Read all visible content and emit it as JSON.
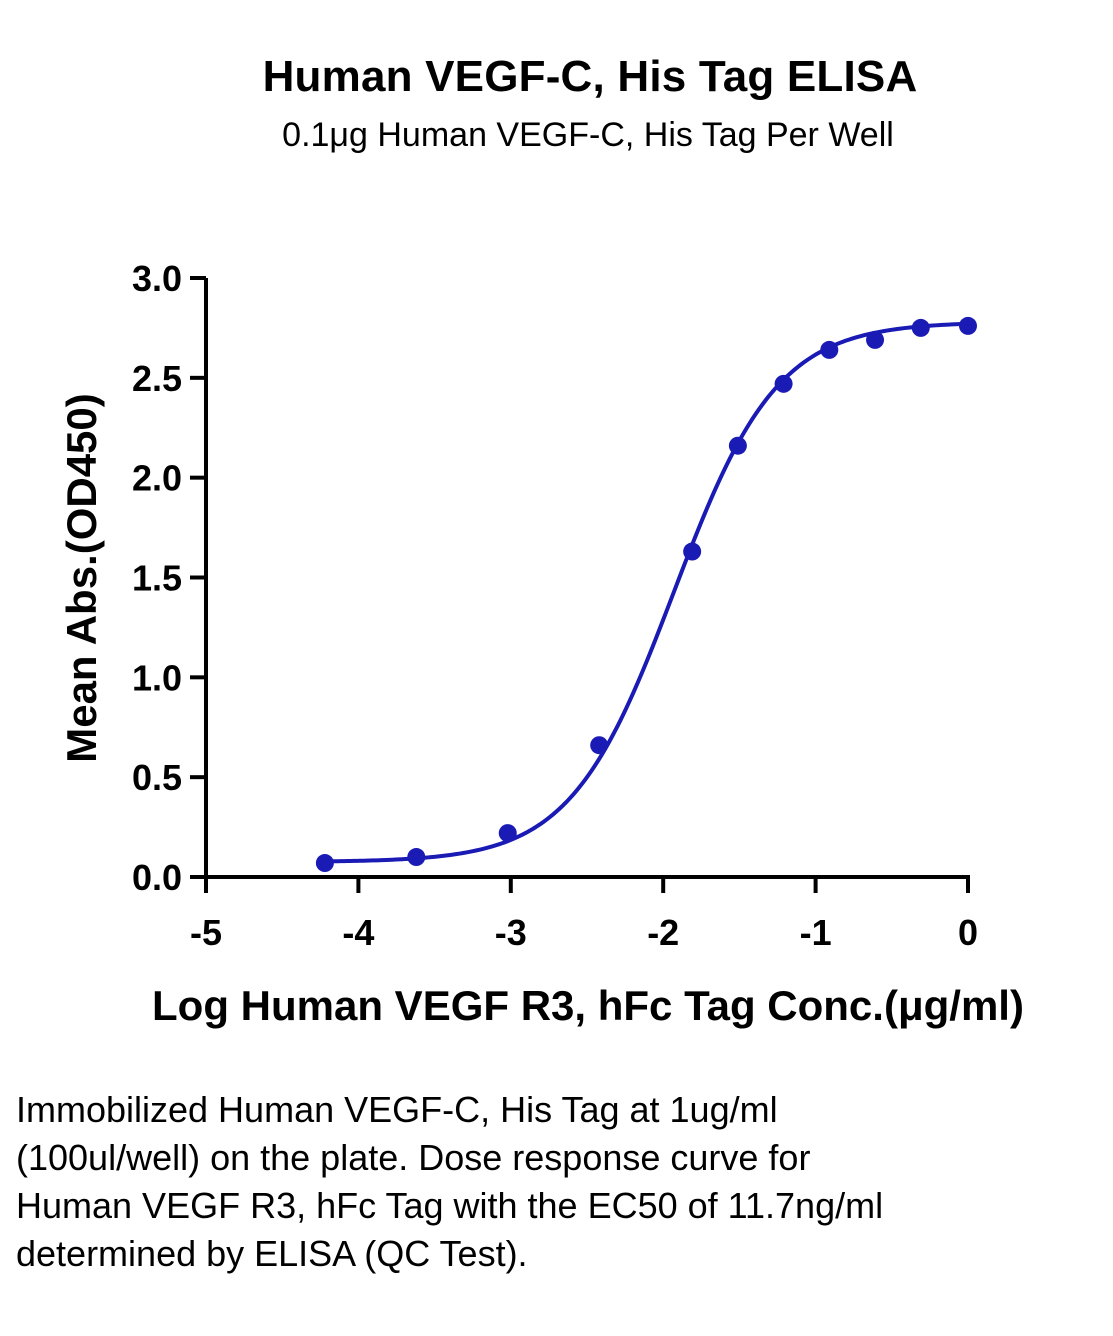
{
  "title": "Human VEGF-C, His Tag ELISA",
  "subtitle": "0.1μg Human VEGF-C, His Tag Per Well",
  "caption": "Immobilized Human VEGF-C, His Tag at 1ug/ml (100ul/well) on the plate. Dose response curve for Human VEGF R3, hFc Tag with the EC50 of 11.7ng/ml determined by ELISA (QC Test).",
  "colors": {
    "series": "#1a1ab4",
    "axis": "#000000"
  },
  "chart_data": {
    "type": "line",
    "xlabel": "Log Human VEGF R3, hFc Tag Conc.(μg/ml)",
    "ylabel": "Mean Abs.(OD450)",
    "xlim": [
      -5,
      0
    ],
    "ylim": [
      0,
      3.0
    ],
    "x_ticks": [
      -5,
      -4,
      -3,
      -2,
      -1,
      0
    ],
    "x_tick_labels": [
      "-5",
      "-4",
      "-3",
      "-2",
      "-1",
      "0"
    ],
    "y_ticks": [
      0,
      0.5,
      1.0,
      1.5,
      2.0,
      2.5,
      3.0
    ],
    "y_tick_labels": [
      "0.0",
      "0.5",
      "1.0",
      "1.5",
      "2.0",
      "2.5",
      "3.0"
    ],
    "grid": false,
    "series": [
      {
        "x": [
          -4.22,
          -3.62,
          -3.02,
          -2.42,
          -1.81,
          -1.51,
          -1.21,
          -0.91,
          -0.61,
          -0.31,
          0.0
        ],
        "y": [
          0.07,
          0.1,
          0.22,
          0.66,
          1.63,
          2.16,
          2.47,
          2.64,
          2.69,
          2.75,
          2.76
        ],
        "marker": "circle",
        "fit": "4PL"
      }
    ]
  }
}
